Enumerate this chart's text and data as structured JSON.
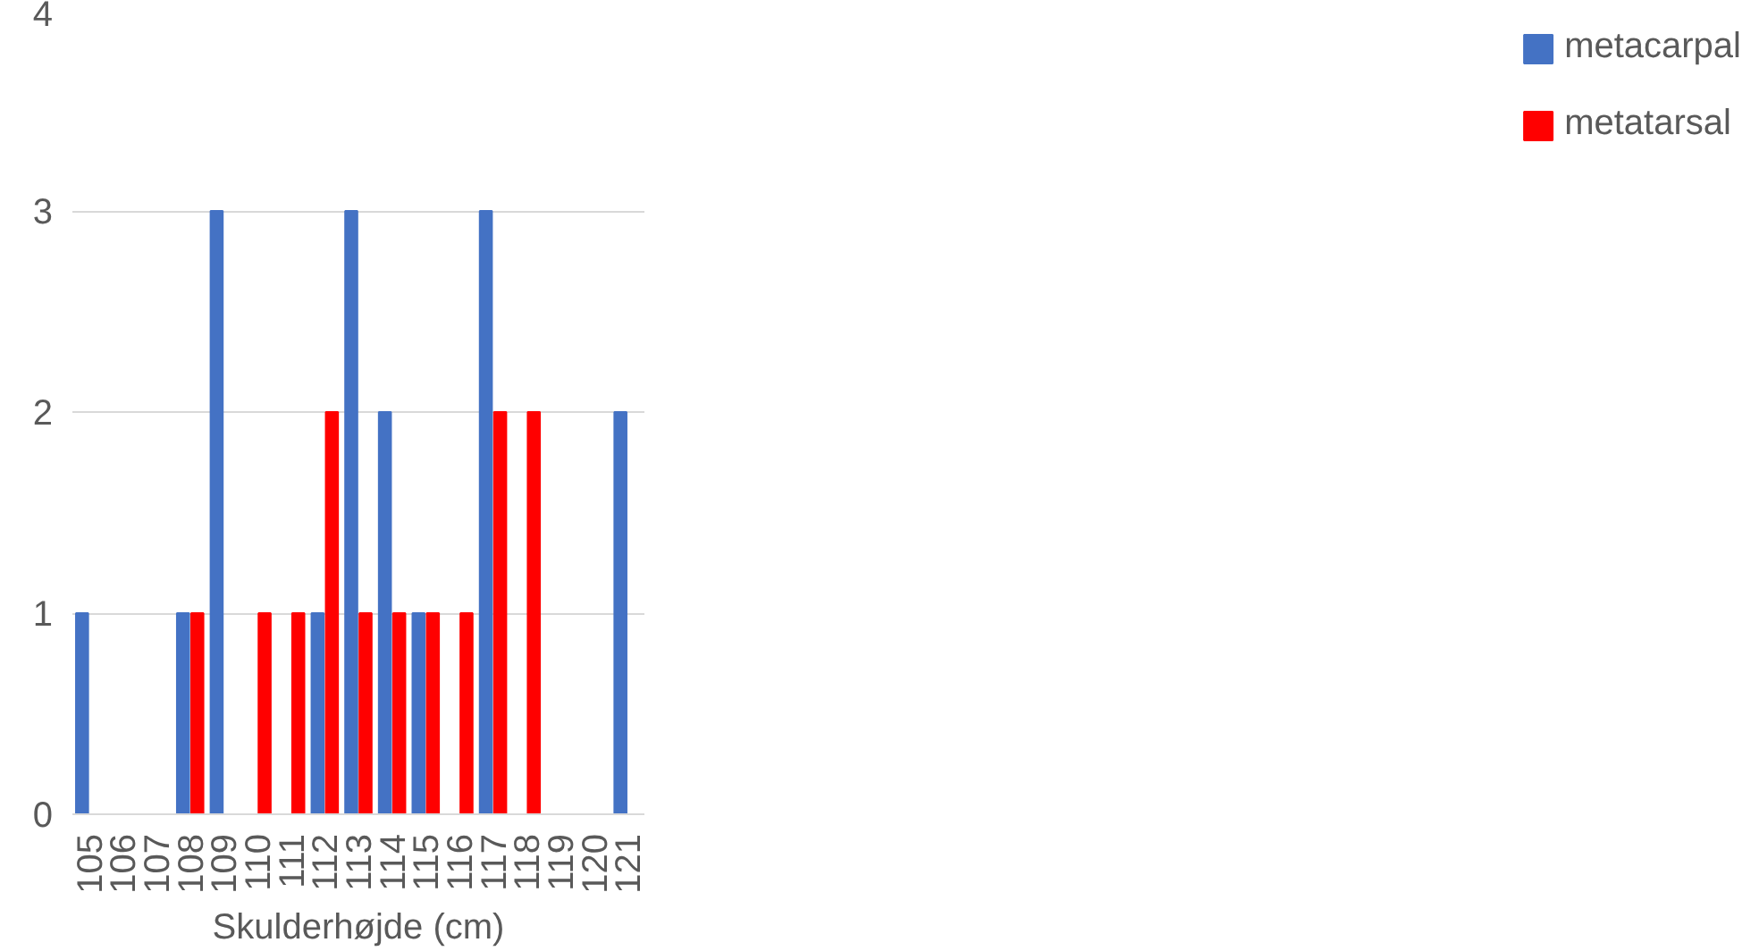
{
  "chart_data": {
    "type": "bar",
    "xlabel": "Skulderhøjde (cm)",
    "categories": [
      "105",
      "106",
      "107",
      "108",
      "109",
      "110",
      "111",
      "112",
      "113",
      "114",
      "115",
      "116",
      "117",
      "118",
      "119",
      "120",
      "121"
    ],
    "series": [
      {
        "name": "metacarpal",
        "color": "#4472c4",
        "values": [
          1,
          0,
          0,
          1,
          3,
          0,
          0,
          1,
          3,
          2,
          1,
          0,
          3,
          0,
          0,
          0,
          2
        ]
      },
      {
        "name": "metatarsal",
        "color": "#ff0000",
        "values": [
          0,
          0,
          0,
          1,
          0,
          1,
          1,
          2,
          1,
          1,
          1,
          1,
          2,
          2,
          0,
          0,
          0
        ]
      }
    ],
    "ylim": [
      0,
      4
    ],
    "yticks": [
      0,
      1,
      2,
      3,
      4
    ],
    "grid": "y",
    "legend": "right"
  }
}
